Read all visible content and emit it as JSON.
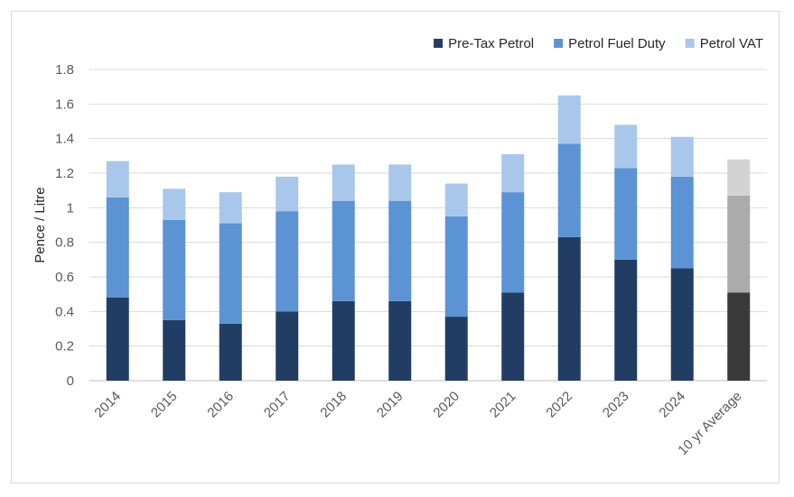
{
  "chart_data": {
    "type": "bar",
    "stacked": true,
    "ylabel": "Pence / Litre",
    "ylim": [
      0,
      1.8
    ],
    "ytick_step": 0.2,
    "ytick_labels": [
      "0",
      "0.2",
      "0.4",
      "0.6",
      "0.8",
      "1",
      "1.2",
      "1.4",
      "1.6",
      "1.8"
    ],
    "grid": true,
    "legend_position": "top-right",
    "categories": [
      "2014",
      "2015",
      "2016",
      "2017",
      "2018",
      "2019",
      "2020",
      "2021",
      "2022",
      "2023",
      "2024",
      "10 yr Average"
    ],
    "series": [
      {
        "name": "Pre-Tax Petrol",
        "color": "#213d63",
        "highlight_color": "#3a3a3a",
        "values": [
          0.48,
          0.35,
          0.33,
          0.4,
          0.46,
          0.46,
          0.37,
          0.51,
          0.83,
          0.7,
          0.65,
          0.51
        ]
      },
      {
        "name": "Petrol Fuel Duty",
        "color": "#5b93d4",
        "highlight_color": "#ababab",
        "values": [
          0.58,
          0.58,
          0.58,
          0.58,
          0.58,
          0.58,
          0.58,
          0.58,
          0.54,
          0.53,
          0.53,
          0.56
        ]
      },
      {
        "name": "Petrol VAT",
        "color": "#a9c7ea",
        "highlight_color": "#d3d3d3",
        "values": [
          0.21,
          0.18,
          0.18,
          0.2,
          0.21,
          0.21,
          0.19,
          0.22,
          0.28,
          0.25,
          0.23,
          0.21
        ]
      }
    ],
    "highlight_category": "10 yr Average"
  }
}
